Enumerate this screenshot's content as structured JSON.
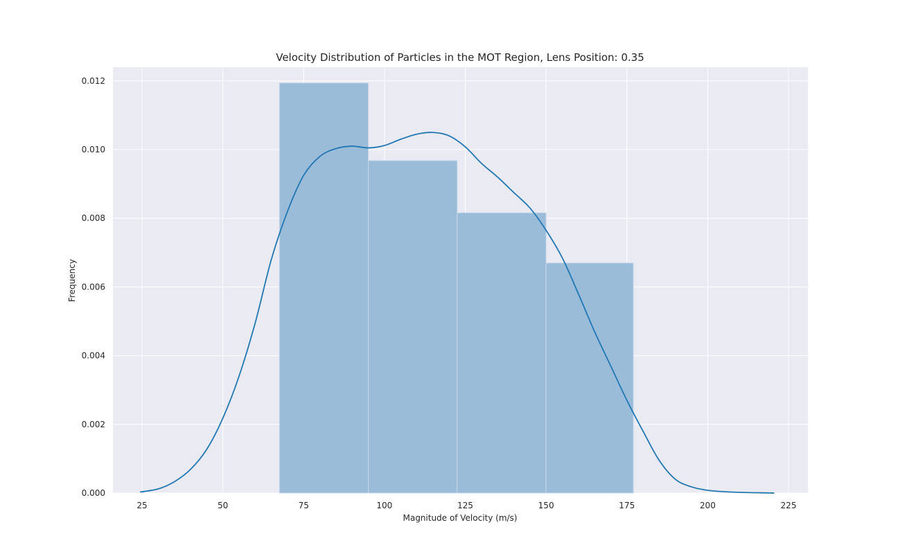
{
  "chart_data": {
    "type": "bar",
    "title": "Velocity Distribution of Particles in the MOT Region, Lens Position: 0.35",
    "xlabel": "Magnitude of Velocity (m/s)",
    "ylabel": "Frequency",
    "xlim": [
      16,
      231
    ],
    "ylim": [
      0,
      0.0124
    ],
    "xticks": [
      25,
      50,
      75,
      100,
      125,
      150,
      175,
      200,
      225
    ],
    "yticks": [
      0.0,
      0.002,
      0.004,
      0.006,
      0.008,
      0.01,
      0.012
    ],
    "ytick_labels": [
      "0.000",
      "0.002",
      "0.004",
      "0.006",
      "0.008",
      "0.010",
      "0.012"
    ],
    "grid": true,
    "histogram": {
      "bin_edges": [
        67.5,
        95.0,
        122.5,
        150.0,
        177.0
      ],
      "values": [
        0.01194,
        0.00968,
        0.00816,
        0.0067
      ],
      "color": "#9bbcd9"
    },
    "kde": {
      "color": "#1f77b4",
      "x": [
        24.4,
        30,
        35,
        40,
        45,
        50,
        55,
        60,
        65,
        70,
        75,
        80,
        85,
        90,
        95,
        100,
        105,
        110,
        115,
        120,
        125,
        130,
        135,
        140,
        145,
        150,
        155,
        160,
        165,
        170,
        175,
        180,
        185,
        190,
        195,
        200,
        205,
        210,
        215,
        220.6
      ],
      "y": [
        3e-05,
        0.00012,
        0.00033,
        0.00069,
        0.00127,
        0.00218,
        0.0034,
        0.00495,
        0.0068,
        0.0082,
        0.00925,
        0.0098,
        0.01003,
        0.0101,
        0.01005,
        0.01012,
        0.0103,
        0.01045,
        0.0105,
        0.0104,
        0.01008,
        0.0096,
        0.0092,
        0.00875,
        0.0083,
        0.00765,
        0.00685,
        0.0058,
        0.0047,
        0.0037,
        0.0027,
        0.0018,
        0.00095,
        0.0004,
        0.00018,
        8e-05,
        4e-05,
        2e-05,
        1e-05,
        0.0
      ]
    },
    "colors": {
      "plot_background": "#eaeaf2",
      "grid": "#ffffff",
      "hist_edge": "#c7d8ea"
    }
  }
}
